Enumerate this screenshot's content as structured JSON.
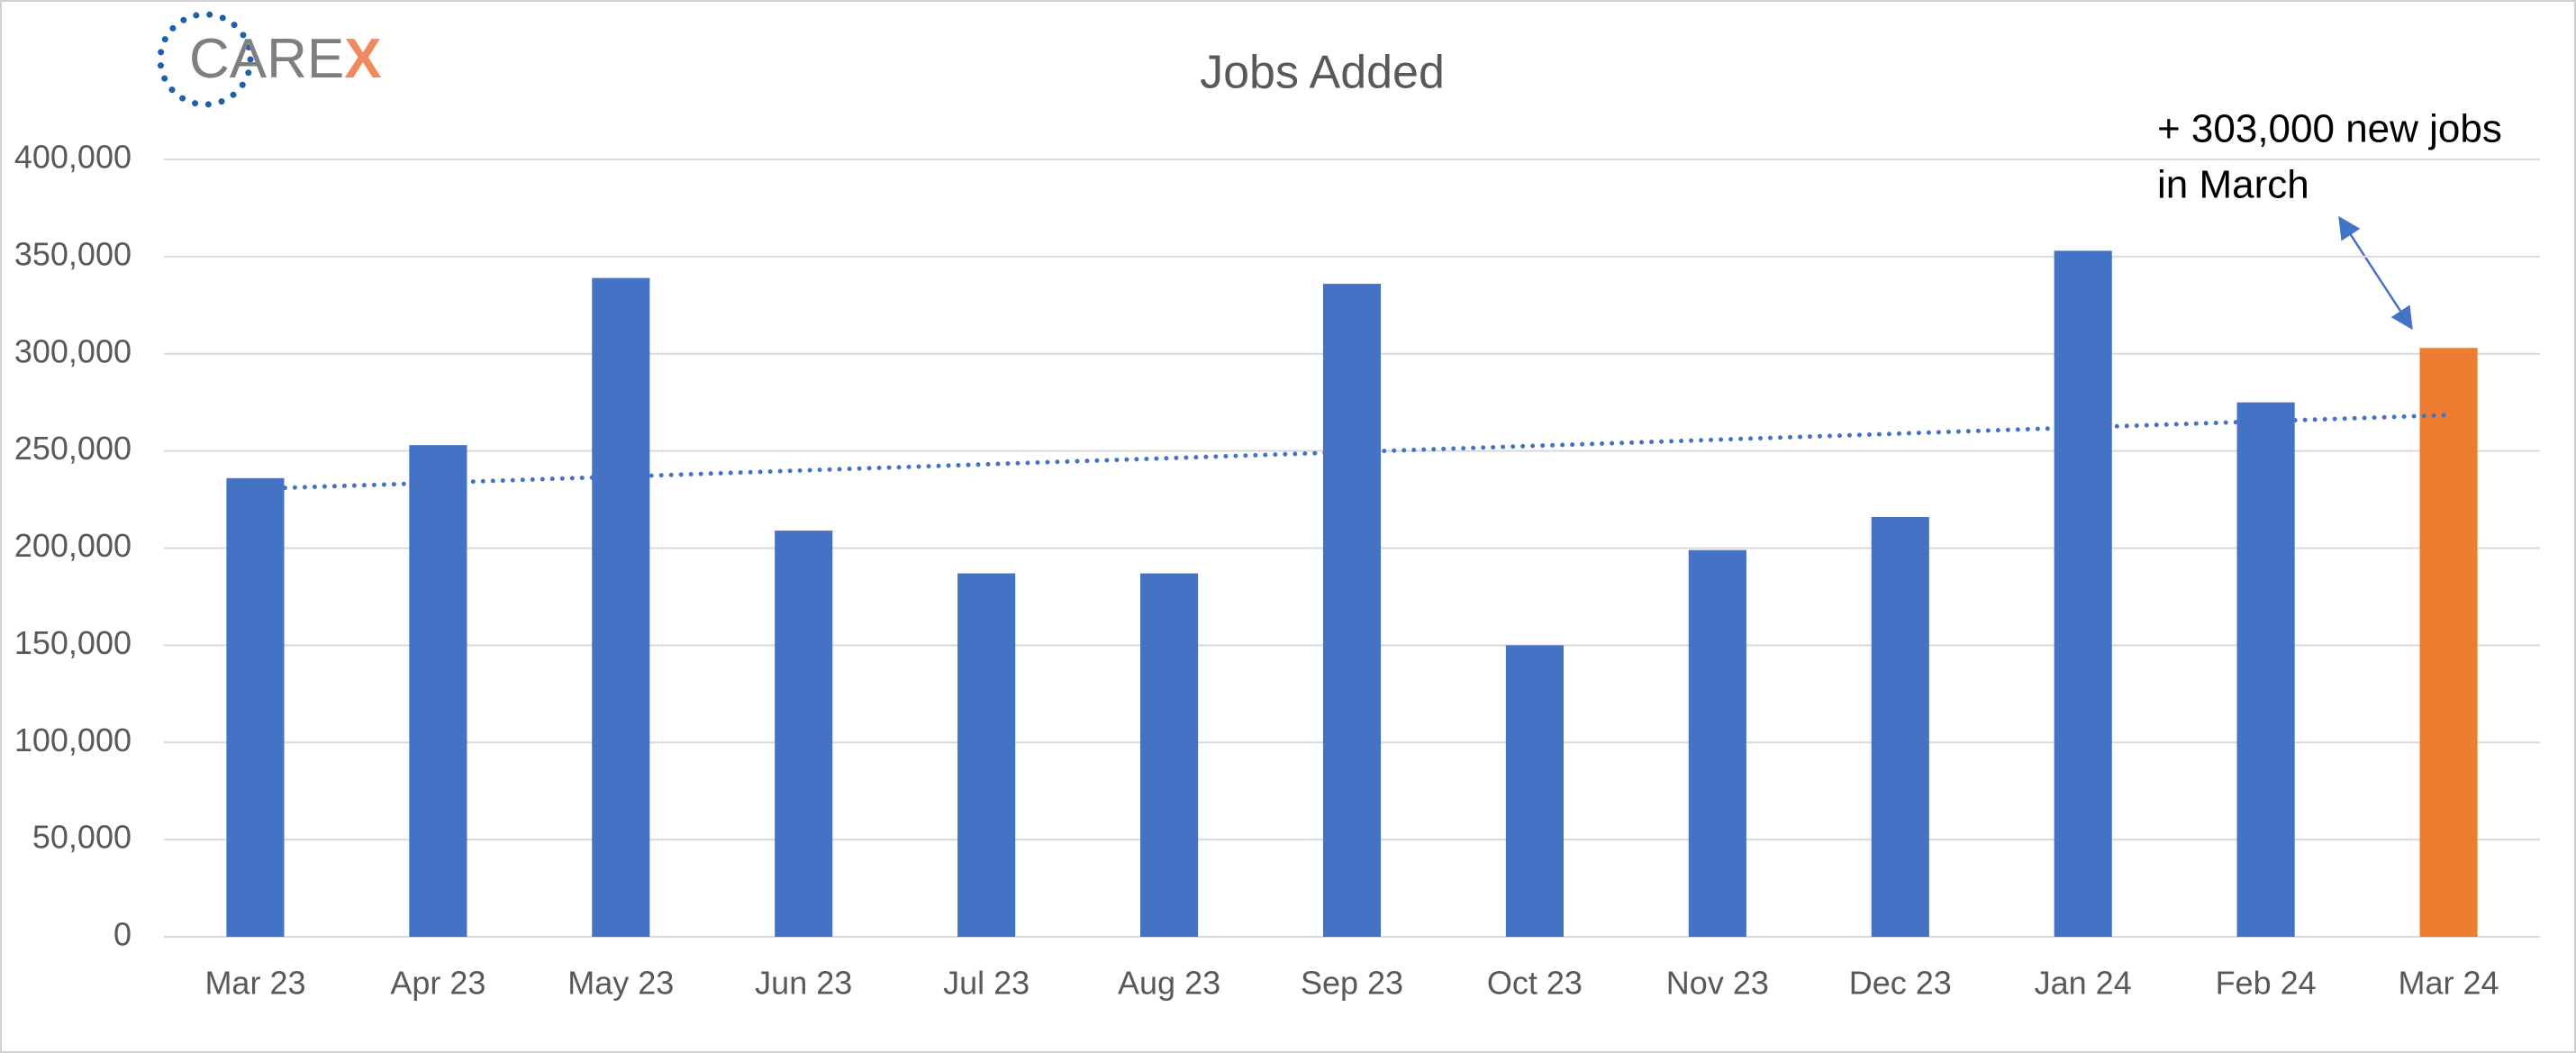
{
  "logo": {
    "text": "CARE",
    "accent": "X"
  },
  "chart_data": {
    "type": "bar",
    "title": "Jobs Added",
    "categories": [
      "Mar 23",
      "Apr 23",
      "May 23",
      "Jun 23",
      "Jul 23",
      "Aug 23",
      "Sep 23",
      "Oct 23",
      "Nov 23",
      "Dec 23",
      "Jan 24",
      "Feb 24",
      "Mar 24"
    ],
    "values": [
      236000,
      253000,
      339000,
      209000,
      187000,
      187000,
      336000,
      150000,
      199000,
      216000,
      353000,
      275000,
      303000
    ],
    "colors": [
      "#4472c4",
      "#4472c4",
      "#4472c4",
      "#4472c4",
      "#4472c4",
      "#4472c4",
      "#4472c4",
      "#4472c4",
      "#4472c4",
      "#4472c4",
      "#4472c4",
      "#4472c4",
      "#ed7d31"
    ],
    "ylim": [
      0,
      400000
    ],
    "yticks": [
      0,
      {
        "value": 50000,
        "label": "50,000"
      },
      {
        "value": 100000,
        "label": "100,000"
      },
      {
        "value": 150000,
        "label": "150,000"
      },
      {
        "value": 200000,
        "label": "200,000"
      },
      {
        "value": 250000,
        "label": "250,000"
      },
      {
        "value": 300000,
        "label": "300,000"
      },
      {
        "value": 350000,
        "label": "350,000"
      },
      {
        "value": 400000,
        "label": "400,000"
      }
    ],
    "grid": true,
    "trendline": true,
    "annotation": [
      "+ 303,000 new jobs",
      "in March"
    ]
  }
}
